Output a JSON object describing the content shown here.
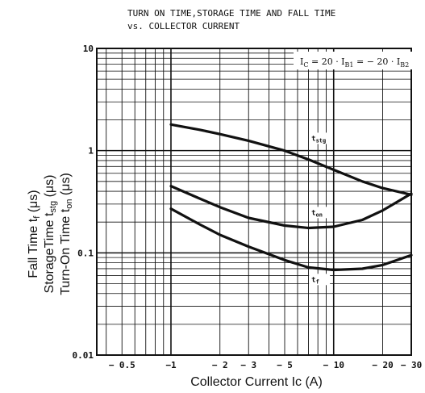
{
  "chart_data": {
    "type": "line",
    "title_line1": "TURN ON TIME,STORAGE TIME AND FALL TIME",
    "title_line2": "vs. COLLECTOR CURRENT",
    "annotation": "Ic = 20 · IB1 = − 20 · IB2",
    "annotation_parts": {
      "ic": "I",
      "ic_sub": "C",
      "eq1": " = 20 · I",
      "b1_sub": "B1",
      "eq2": " = − 20 · I",
      "b2_sub": "B2"
    },
    "xlabel": "Collector Current  Ic  (A)",
    "ylabel_lines": [
      "Fall Time  tf  (μs)",
      "StorageTime  tstg  (μs)",
      "Turn-On Time  ton  (μs)"
    ],
    "ylabel_parts": [
      {
        "main": "Fall Time  t",
        "sub": "f",
        "unit": "  (μs)"
      },
      {
        "main": "StorageTime  t",
        "sub": "stg",
        "unit": "  (μs)"
      },
      {
        "main": "Turn-On Time  t",
        "sub": "on",
        "unit": "  (μs)"
      }
    ],
    "x_scale": "log",
    "y_scale": "log",
    "xlim": [
      0.35,
      30
    ],
    "ylim": [
      0.01,
      10
    ],
    "x_ticks": [
      {
        "value": 0.5,
        "label": "− 0.5"
      },
      {
        "value": 1,
        "label": "−1"
      },
      {
        "value": 2,
        "label": "− 2"
      },
      {
        "value": 3,
        "label": "− 3"
      },
      {
        "value": 5,
        "label": "− 5"
      },
      {
        "value": 10,
        "label": "− 10"
      },
      {
        "value": 20,
        "label": "− 20"
      },
      {
        "value": 30,
        "label": "− 30"
      }
    ],
    "y_ticks": [
      {
        "value": 10,
        "label": "10"
      },
      {
        "value": 1,
        "label": "1"
      },
      {
        "value": 0.1,
        "label": "0.1"
      },
      {
        "value": 0.01,
        "label": "0.01"
      }
    ],
    "grid": true,
    "series": [
      {
        "name": "tstg",
        "label_main": "t",
        "label_sub": "stg",
        "x": [
          1,
          1.5,
          2,
          3,
          5,
          7,
          10,
          15,
          20,
          30
        ],
        "y": [
          1.8,
          1.6,
          1.45,
          1.25,
          1.0,
          0.82,
          0.65,
          0.5,
          0.43,
          0.37
        ]
      },
      {
        "name": "ton",
        "label_main": "t",
        "label_sub": "on",
        "x": [
          1,
          1.5,
          2,
          3,
          5,
          7,
          10,
          15,
          20,
          30
        ],
        "y": [
          0.45,
          0.34,
          0.28,
          0.22,
          0.185,
          0.175,
          0.18,
          0.21,
          0.26,
          0.38
        ]
      },
      {
        "name": "tf",
        "label_main": "t",
        "label_sub": "f",
        "x": [
          1,
          1.5,
          2,
          3,
          5,
          7,
          10,
          15,
          20,
          30
        ],
        "y": [
          0.27,
          0.19,
          0.15,
          0.115,
          0.085,
          0.072,
          0.068,
          0.07,
          0.076,
          0.095
        ]
      }
    ]
  }
}
